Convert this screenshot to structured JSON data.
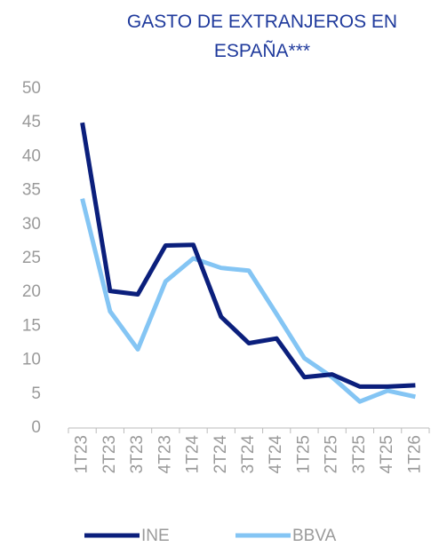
{
  "chart_data": {
    "type": "line",
    "title": "GASTO DE EXTRANJEROS EN ESPAÑA***",
    "categories": [
      "1T23",
      "2T23",
      "3T23",
      "4T23",
      "1T24",
      "2T24",
      "3T24",
      "4T24",
      "1T25",
      "2T25",
      "3T25",
      "4T25",
      "1T26"
    ],
    "series": [
      {
        "name": "INE",
        "color": "#0b1f7c",
        "values": [
          45,
          20.2,
          19.7,
          26.9,
          27,
          16.4,
          12.5,
          13.2,
          7.5,
          7.9,
          6.1,
          6.1,
          6.3
        ]
      },
      {
        "name": "BBVA",
        "color": "#84c5f4",
        "values": [
          33.8,
          17.2,
          11.6,
          21.6,
          25,
          23.6,
          23.2,
          16.8,
          10.3,
          7.5,
          3.9,
          5.5,
          4.6
        ]
      }
    ],
    "ylim": [
      0,
      50
    ],
    "yticks": [
      0,
      5,
      10,
      15,
      20,
      25,
      30,
      35,
      40,
      45,
      50
    ],
    "grid": false,
    "legend": "bottom"
  }
}
